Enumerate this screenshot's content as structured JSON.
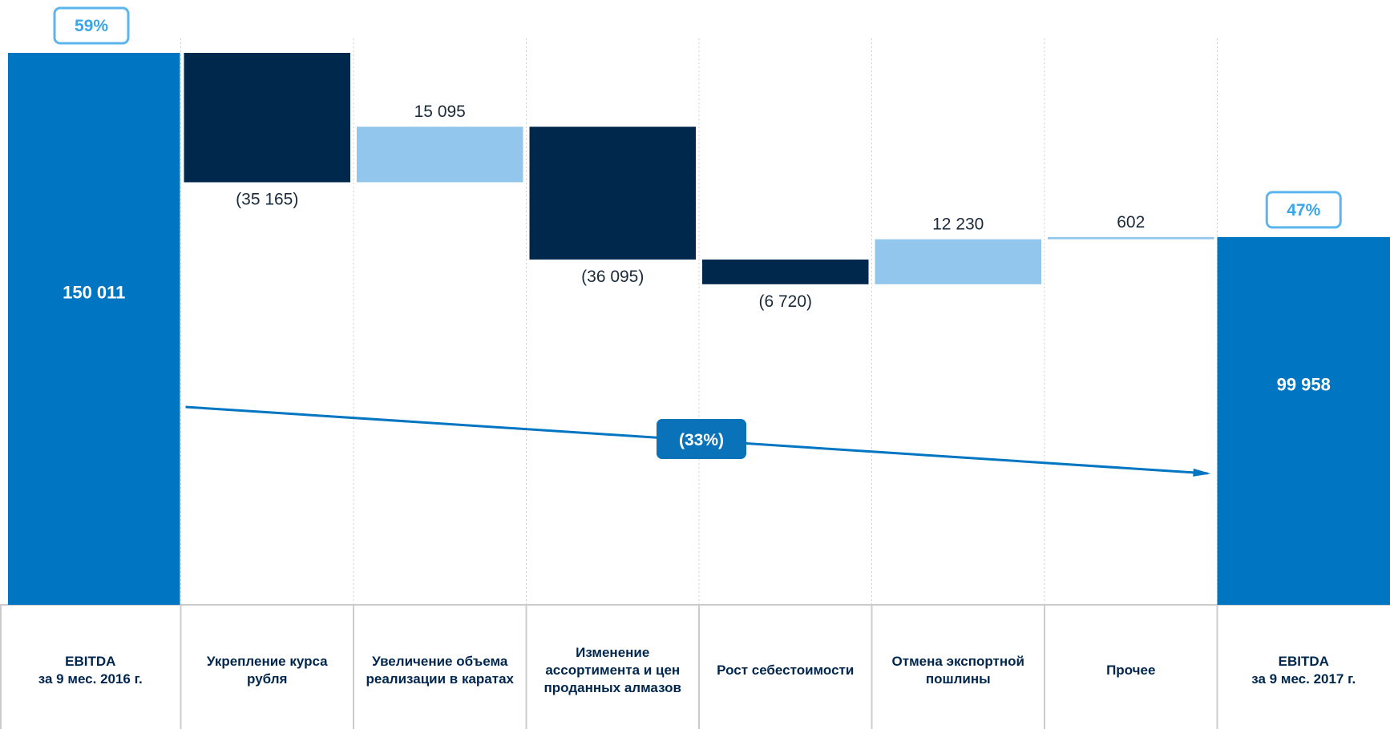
{
  "chart_data": {
    "type": "bar",
    "subtype": "waterfall",
    "categories": [
      [
        "EBITDA",
        "за 9 мес. 2016 г."
      ],
      [
        "Укрепление курса",
        "рубля"
      ],
      [
        "Увеличение объема",
        "реализации в каратах"
      ],
      [
        "Изменение",
        "ассортимента и цен",
        "проданных алмазов"
      ],
      [
        "Рост себестоимости"
      ],
      [
        "Отмена экспортной",
        "пошлины"
      ],
      [
        "Прочее"
      ],
      [
        "EBITDA",
        "за 9 мес. 2017 г."
      ]
    ],
    "values": [
      150011,
      -35165,
      15095,
      -36095,
      -6720,
      12230,
      602,
      99958
    ],
    "bar_kinds": [
      "total",
      "decrease",
      "increase",
      "decrease",
      "decrease",
      "increase",
      "increase",
      "total"
    ],
    "value_labels": [
      "150 011",
      "(35 165)",
      "15 095",
      "(36 095)",
      "(6 720)",
      "12 230",
      "602",
      "99 958"
    ],
    "margin_badges": [
      {
        "index": 0,
        "text": "59%"
      },
      {
        "index": 7,
        "text": "47%"
      }
    ],
    "change_badge": "(33%)",
    "ylim": [
      0,
      150011
    ],
    "colors": {
      "total": "#0075c2",
      "decrease": "#00284d",
      "increase": "#93c6ec",
      "badge_border": "#5bb5ee",
      "badge_text": "#3aa5e8",
      "arrow": "#0075c2",
      "change_badge_bg": "#0a72b8",
      "grid": "#cccccc",
      "label_text": "#00264d"
    }
  }
}
